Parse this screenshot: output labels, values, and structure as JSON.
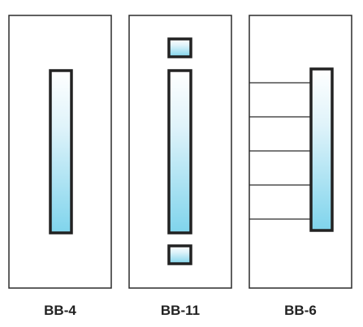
{
  "colors": {
    "background": "#ffffff",
    "door_outline": "#2b2b2b",
    "glass_frame": "#222222",
    "glass_top": "#ffffff",
    "glass_bottom": "#7fd4ec",
    "label": "#222222"
  },
  "doors": [
    {
      "name": "door-bb-4",
      "label": "BB-4",
      "features": [
        "center-vertical-lite"
      ]
    },
    {
      "name": "door-bb-11",
      "label": "BB-11",
      "features": [
        "top-small-lite",
        "center-vertical-lite",
        "bottom-small-lite"
      ]
    },
    {
      "name": "door-bb-6",
      "label": "BB-6",
      "features": [
        "horizontal-groove-lines",
        "offset-vertical-lite"
      ],
      "groove_count": 5
    }
  ]
}
